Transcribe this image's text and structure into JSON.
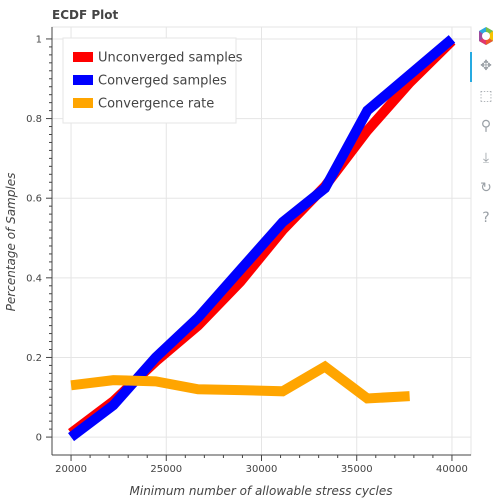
{
  "chart_data": {
    "type": "line",
    "title": "ECDF Plot",
    "xlabel": "Minimum number of allowable stress cycles",
    "ylabel": "Percentage of Samples",
    "xlim": [
      19000,
      41000
    ],
    "ylim": [
      -0.045,
      1.03
    ],
    "x_ticks": [
      20000,
      25000,
      30000,
      35000,
      40000
    ],
    "x_tick_labels": [
      "20000",
      "25000",
      "30000",
      "35000",
      "40000"
    ],
    "y_ticks": [
      0,
      0.2,
      0.4,
      0.6,
      0.8,
      1
    ],
    "y_tick_labels": [
      "0",
      "0.2",
      "0.4",
      "0.6",
      "0.8",
      "1"
    ],
    "grid": true,
    "legend_position": "top-left",
    "series": [
      {
        "name": "Unconverged samples",
        "color": "#ff0000",
        "x": [
          20000,
          22222,
          24444,
          26667,
          28889,
          31111,
          33333,
          35556,
          37778,
          40000
        ],
        "y": [
          0.01,
          0.09,
          0.19,
          0.28,
          0.39,
          0.52,
          0.63,
          0.77,
          0.89,
          0.995
        ]
      },
      {
        "name": "Converged samples",
        "color": "#0000ff",
        "x": [
          20000,
          22222,
          24444,
          26667,
          28889,
          31111,
          33333,
          35556,
          37778,
          40000
        ],
        "y": [
          0.0,
          0.08,
          0.2,
          0.3,
          0.42,
          0.54,
          0.625,
          0.82,
          0.91,
          1.0
        ]
      },
      {
        "name": "Convergence rate",
        "color": "#ffa500",
        "x": [
          20000,
          22222,
          24444,
          26667,
          28889,
          31111,
          33333,
          35556,
          37778
        ],
        "y": [
          0.13,
          0.143,
          0.14,
          0.12,
          0.118,
          0.115,
          0.177,
          0.097,
          0.103
        ]
      }
    ]
  },
  "toolbar": {
    "items": [
      {
        "name": "bokeh-logo-icon",
        "glyph": ""
      },
      {
        "name": "pan-tool-icon",
        "glyph": "✥"
      },
      {
        "name": "box-zoom-tool-icon",
        "glyph": "⬚"
      },
      {
        "name": "wheel-zoom-tool-icon",
        "glyph": "⚲"
      },
      {
        "name": "save-tool-icon",
        "glyph": "⤓"
      },
      {
        "name": "reset-tool-icon",
        "glyph": "↻"
      },
      {
        "name": "help-tool-icon",
        "glyph": "?"
      }
    ]
  }
}
